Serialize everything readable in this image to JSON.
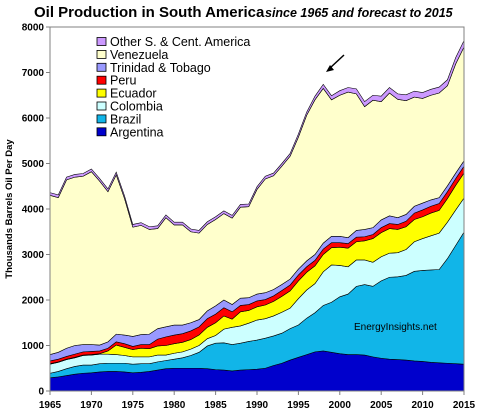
{
  "chart_data": {
    "type": "area",
    "stacked": true,
    "title": "Oil Production in South America",
    "subtitle": "since 1965 and forecast to 2015",
    "ylabel": "Thousands Barrels Oil Per Day",
    "xlabel": "",
    "xlim": [
      1965,
      2015
    ],
    "ylim": [
      0,
      8000
    ],
    "x_ticks": [
      1965,
      1970,
      1975,
      1980,
      1985,
      1990,
      1995,
      2000,
      2005,
      2010,
      2015
    ],
    "y_ticks": [
      0,
      1000,
      2000,
      3000,
      4000,
      5000,
      6000,
      7000,
      8000
    ],
    "annotation": "EnergyInsights.net",
    "legend_position": "top-left",
    "x": [
      1965,
      1966,
      1967,
      1968,
      1969,
      1970,
      1971,
      1972,
      1973,
      1974,
      1975,
      1976,
      1977,
      1978,
      1979,
      1980,
      1981,
      1982,
      1983,
      1984,
      1985,
      1986,
      1987,
      1988,
      1989,
      1990,
      1991,
      1992,
      1993,
      1994,
      1995,
      1996,
      1997,
      1998,
      1999,
      2000,
      2001,
      2002,
      2003,
      2004,
      2005,
      2006,
      2007,
      2008,
      2009,
      2010,
      2011,
      2012,
      2013,
      2014,
      2015
    ],
    "series": [
      {
        "name": "Argentina",
        "color": "#0000cc",
        "values": [
          290,
          310,
          340,
          370,
          390,
          400,
          420,
          430,
          430,
          420,
          400,
          410,
          430,
          460,
          490,
          500,
          500,
          500,
          500,
          490,
          470,
          460,
          440,
          460,
          470,
          480,
          500,
          560,
          610,
          680,
          740,
          800,
          860,
          880,
          850,
          820,
          800,
          800,
          790,
          750,
          720,
          700,
          690,
          680,
          660,
          650,
          630,
          620,
          610,
          600,
          590
        ]
      },
      {
        "name": "Brazil",
        "color": "#11b5e8",
        "values": [
          100,
          120,
          150,
          170,
          180,
          170,
          180,
          180,
          180,
          190,
          190,
          190,
          170,
          180,
          180,
          200,
          230,
          280,
          350,
          500,
          580,
          600,
          580,
          590,
          620,
          640,
          660,
          650,
          660,
          690,
          710,
          800,
          860,
          1000,
          1100,
          1250,
          1330,
          1500,
          1550,
          1550,
          1700,
          1800,
          1820,
          1860,
          1970,
          2000,
          2030,
          2050,
          2300,
          2600,
          2900
        ]
      },
      {
        "name": "Colombia",
        "color": "#ccffff",
        "values": [
          200,
          200,
          200,
          190,
          210,
          220,
          210,
          200,
          190,
          170,
          160,
          150,
          150,
          150,
          120,
          130,
          130,
          140,
          150,
          160,
          170,
          300,
          380,
          380,
          400,
          440,
          430,
          440,
          460,
          450,
          580,
          620,
          640,
          740,
          820,
          690,
          600,
          580,
          540,
          530,
          530,
          530,
          530,
          570,
          650,
          700,
          750,
          800,
          800,
          780,
          750
        ]
      },
      {
        "name": "Ecuador",
        "color": "#ffff00",
        "values": [
          10,
          10,
          10,
          10,
          10,
          10,
          10,
          70,
          210,
          180,
          160,
          190,
          180,
          200,
          210,
          210,
          210,
          210,
          230,
          250,
          280,
          290,
          180,
          310,
          280,
          290,
          300,
          320,
          350,
          380,
          390,
          390,
          390,
          380,
          380,
          400,
          410,
          400,
          420,
          520,
          530,
          540,
          510,
          500,
          490,
          480,
          500,
          500,
          520,
          540,
          550
        ]
      },
      {
        "name": "Peru",
        "color": "#ff0000",
        "values": [
          60,
          60,
          60,
          70,
          70,
          70,
          60,
          60,
          70,
          80,
          70,
          80,
          90,
          150,
          190,
          190,
          190,
          190,
          180,
          190,
          190,
          180,
          160,
          140,
          130,
          130,
          120,
          120,
          130,
          130,
          130,
          120,
          120,
          120,
          110,
          100,
          100,
          100,
          90,
          90,
          110,
          110,
          110,
          120,
          140,
          150,
          150,
          150,
          150,
          150,
          150
        ]
      },
      {
        "name": "Trinidad & Tobago",
        "color": "#9999ff",
        "values": [
          140,
          150,
          180,
          190,
          160,
          150,
          130,
          140,
          170,
          190,
          220,
          220,
          230,
          230,
          220,
          220,
          190,
          180,
          160,
          170,
          180,
          170,
          160,
          160,
          150,
          150,
          150,
          140,
          130,
          130,
          130,
          130,
          130,
          130,
          140,
          140,
          130,
          150,
          160,
          150,
          170,
          170,
          150,
          150,
          150,
          150,
          140,
          130,
          130,
          120,
          120
        ]
      },
      {
        "name": "Venezuela",
        "color": "#ffffcc",
        "values": [
          3500,
          3400,
          3700,
          3700,
          3700,
          3800,
          3600,
          3300,
          3500,
          3000,
          2400,
          2400,
          2300,
          2200,
          2400,
          2200,
          2200,
          2000,
          1900,
          1900,
          1900,
          1900,
          1900,
          2000,
          2000,
          2300,
          2500,
          2500,
          2600,
          2700,
          2900,
          3200,
          3400,
          3400,
          3000,
          3100,
          3200,
          3000,
          2700,
          2800,
          2600,
          2700,
          2600,
          2500,
          2400,
          2300,
          2300,
          2300,
          2200,
          2400,
          2500
        ]
      },
      {
        "name": "Other S. & Cent. America",
        "color": "#cc99ff",
        "values": [
          60,
          60,
          60,
          60,
          60,
          60,
          60,
          60,
          60,
          60,
          60,
          60,
          60,
          60,
          60,
          60,
          60,
          60,
          60,
          60,
          60,
          60,
          60,
          60,
          60,
          60,
          60,
          60,
          60,
          60,
          70,
          70,
          80,
          90,
          90,
          100,
          100,
          110,
          110,
          110,
          120,
          120,
          120,
          130,
          130,
          130,
          130,
          130,
          130,
          140,
          140
        ]
      }
    ]
  }
}
